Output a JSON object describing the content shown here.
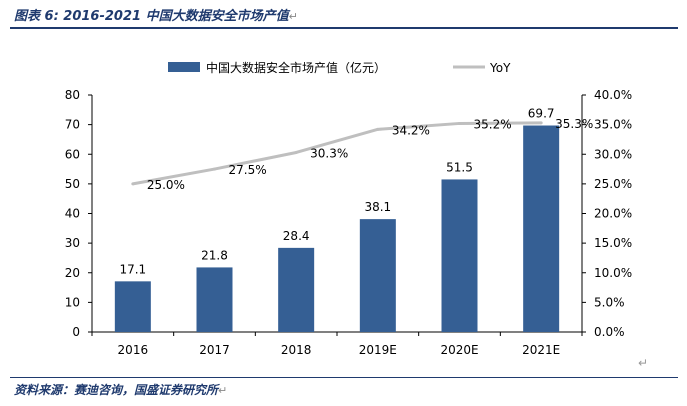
{
  "figure": {
    "title": "图表 6:  2016-2021 中国大数据安全市场产值",
    "source": "资料来源：赛迪咨询，国盛证券研究所",
    "return_mark": "↵"
  },
  "chart_data": {
    "type": "bar",
    "categories": [
      "2016",
      "2017",
      "2018",
      "2019E",
      "2020E",
      "2021E"
    ],
    "series": [
      {
        "name": "中国大数据安全市场产值（亿元）",
        "type": "bar",
        "axis": "left",
        "color": "#355f94",
        "values": [
          17.1,
          21.8,
          28.4,
          38.1,
          51.5,
          69.7
        ],
        "labels": [
          "17.1",
          "21.8",
          "28.4",
          "38.1",
          "51.5",
          "69.7"
        ]
      },
      {
        "name": "YoY",
        "type": "line",
        "axis": "right",
        "color": "#bfbfbf",
        "values": [
          25.0,
          27.5,
          30.3,
          34.2,
          35.2,
          35.3
        ],
        "labels": [
          "25.0%",
          "27.5%",
          "30.3%",
          "34.2%",
          "35.2%",
          "35.3%"
        ]
      }
    ],
    "y_left": {
      "min": 0,
      "max": 80,
      "step": 10,
      "tick_labels": [
        "0",
        "10",
        "20",
        "30",
        "40",
        "50",
        "60",
        "70",
        "80"
      ]
    },
    "y_right": {
      "min": 0,
      "max": 40,
      "step": 5,
      "tick_labels": [
        "0.0%",
        "5.0%",
        "10.0%",
        "15.0%",
        "20.0%",
        "25.0%",
        "30.0%",
        "35.0%",
        "40.0%"
      ]
    },
    "legend_position": "top",
    "grid": false
  }
}
